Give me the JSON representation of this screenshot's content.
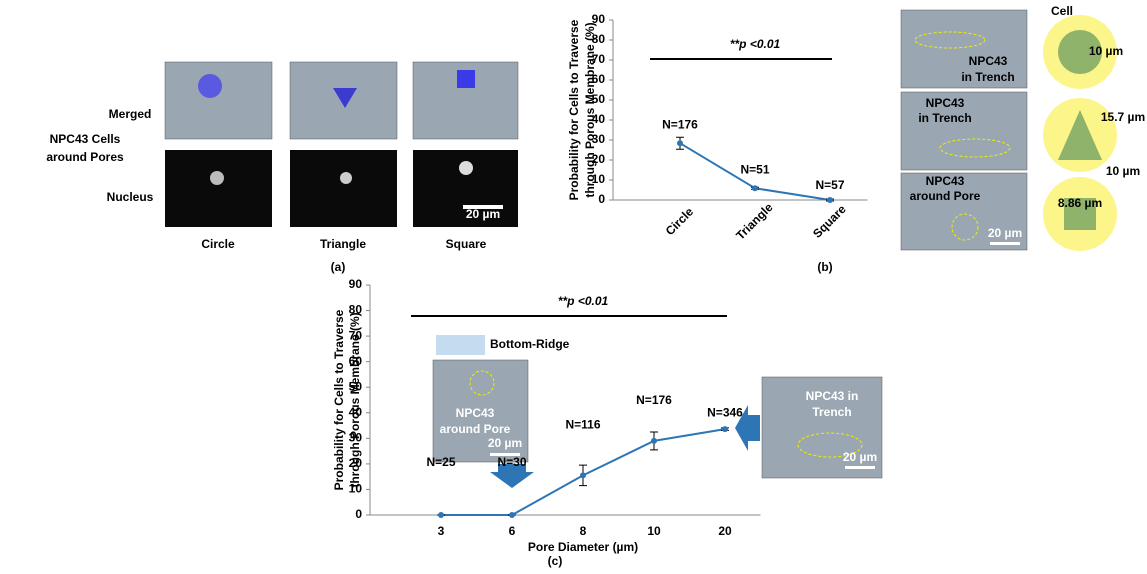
{
  "chart_data": [
    {
      "type": "line",
      "ylabel": [
        "Probability for Cells to Traverse",
        "through Porous Membrane (%)"
      ],
      "categories": [
        "Circle",
        "Triangle",
        "Square"
      ],
      "series": [
        {
          "color": "#2e75b6",
          "values": [
            28.4,
            5.9,
            0
          ],
          "errors": [
            3,
            0.5,
            0.5
          ],
          "annotations": [
            "N=176",
            "N=51",
            "N=57"
          ]
        }
      ],
      "significance": "**p <0.01",
      "ylim": [
        0,
        90
      ],
      "yticks": [
        0,
        10,
        20,
        30,
        40,
        50,
        60,
        70,
        80,
        90
      ]
    },
    {
      "type": "line",
      "ylabel": [
        "Probability for Cells to Traverse",
        "through Porous Membrane (%)"
      ],
      "xlabel": "Pore Diameter  (µm)",
      "categories": [
        "3",
        "6",
        "8",
        "10",
        "20"
      ],
      "series": [
        {
          "color": "#2e75b6",
          "values": [
            0,
            0,
            15.5,
            29,
            33.6
          ],
          "errors": [
            0,
            0,
            4,
            3.5,
            0.5
          ],
          "annotations": [
            "N=25",
            "N=30",
            "N=116",
            "N=176",
            "N=346"
          ]
        }
      ],
      "significance": "**p <0.01",
      "ylim": [
        0,
        90
      ],
      "yticks": [
        0,
        10,
        20,
        30,
        40,
        50,
        60,
        70,
        80,
        90
      ]
    }
  ],
  "figure": {
    "panel_a": {
      "rows": [
        "Merged",
        "Nucleus"
      ],
      "side": [
        "NPC43 Cells",
        "around Pores"
      ],
      "scale": "20 µm",
      "tag": "(a)"
    },
    "panel_b": {
      "tag": "(b)",
      "img1": [
        "NPC43",
        "in Trench"
      ],
      "img2": [
        "NPC43",
        "in Trench"
      ],
      "img3": [
        "NPC43",
        "around Pore"
      ],
      "scale": "20 µm",
      "cell": "Cell",
      "d1": "10 µm",
      "d2": "15.7 µm",
      "d3": "10 µm",
      "d4": "8.86 µm"
    },
    "panel_c": {
      "tag": "(c)",
      "legend": "Bottom-Ridge",
      "inset1": [
        "NPC43",
        "around Pore"
      ],
      "scale1": "20 µm",
      "inset2": [
        "NPC43 in",
        "Trench"
      ],
      "scale2": "20 µm"
    }
  }
}
